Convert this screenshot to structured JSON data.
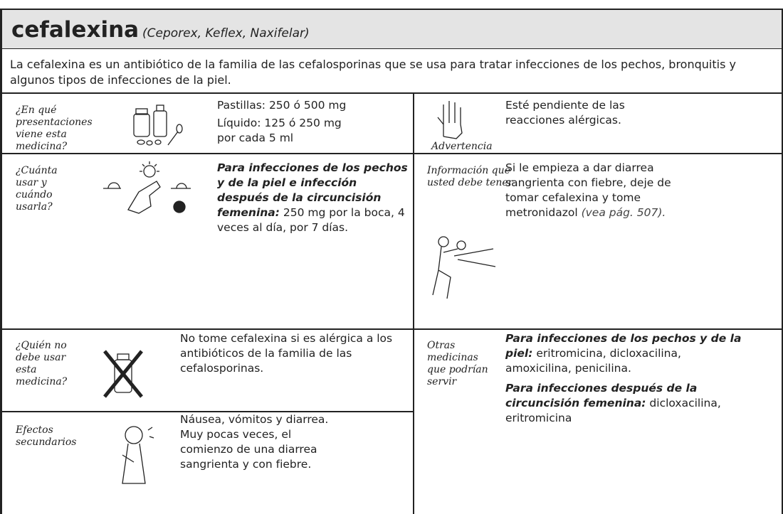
{
  "header": {
    "title": "cefalexina",
    "brands": "(Ceporex, Keflex, Naxifelar)"
  },
  "description": "La cefalexina es un antibiótico de la familia de las cefalosporinas que se usa para tratar infecciones de los pechos, bronquitis y algunos tipos de infecciones de la piel.",
  "presentations": {
    "label": "¿En qué presentaciones viene esta medicina?",
    "lines": [
      "Pastillas: 250 ó 500 mg",
      "Líquido: 125 ó 250 mg por cada 5 ml"
    ]
  },
  "warning": {
    "label": "Advertencia",
    "text": "Esté pendiente de las reacciones alérgicas."
  },
  "dosage": {
    "label": "¿Cuánta usar y cuándo usarla?",
    "emphasis": "Para infecciones de los pechos y de la piel e infección después de la circuncisión femenina:",
    "text": "250 mg por la boca, 4 veces al día, por 7 días."
  },
  "information": {
    "label": "Información que usted debe tener",
    "text": "Si le empieza a dar diarrea sangrienta con fiebre, deje de tomar cefalexina y tome metronidazol",
    "reference": "(vea pág. 507)."
  },
  "contraindications": {
    "label": "¿Quién no debe usar esta medicina?",
    "text": "No tome cefalexina si es alérgica a los antibióticos de la familia de las cefalosporinas."
  },
  "side_effects": {
    "label": "Efectos secundarios",
    "text": "Náusea, vómitos y diarrea. Muy pocas veces, el comienzo de una diarrea sangrienta y con fiebre."
  },
  "alternatives": {
    "label": "Otras medicinas que podrían servir",
    "items": [
      {
        "emphasis": "Para infecciones de los pechos y de la piel:",
        "text": "eritromicina, dicloxacilina, amoxicilina, penicilina."
      },
      {
        "emphasis": "Para infecciones después de la circuncisión femenina:",
        "text": "dicloxacilina, eritromicina"
      }
    ]
  }
}
